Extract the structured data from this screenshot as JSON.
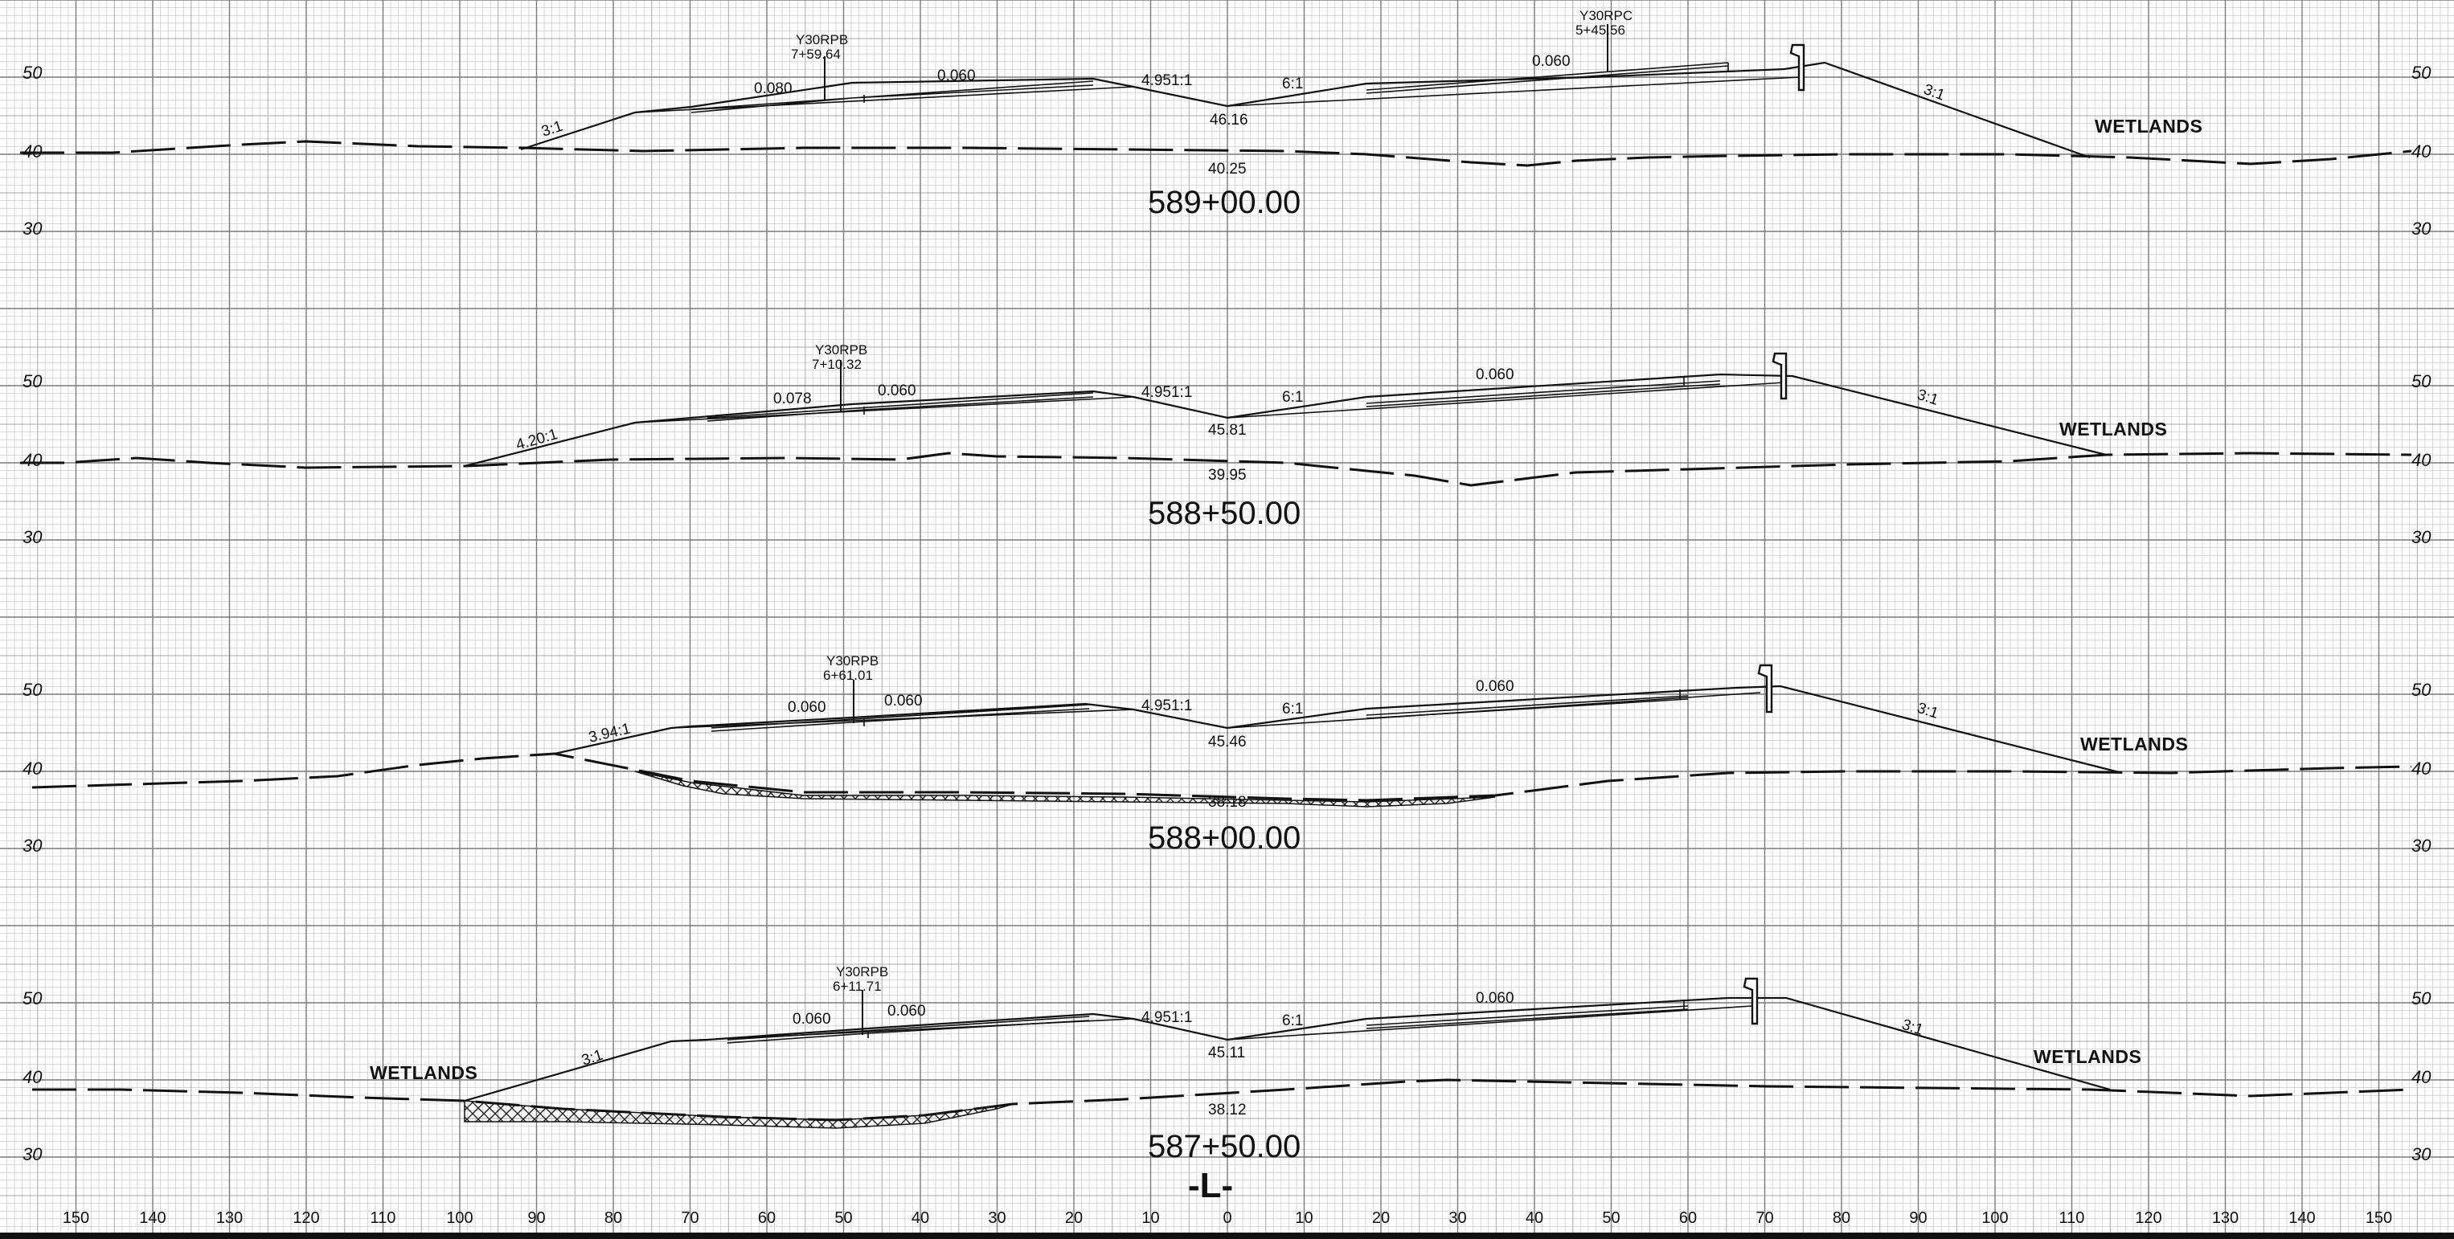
{
  "sheet": {
    "x_axis": {
      "offsets_ft": [
        150,
        140,
        130,
        120,
        110,
        100,
        90,
        80,
        70,
        60,
        50,
        40,
        30,
        20,
        10,
        0,
        10,
        20,
        30,
        40,
        50,
        60,
        70,
        80,
        90,
        100,
        110,
        120,
        130,
        140,
        150
      ]
    },
    "centerline_symbol": "-L-",
    "elevation_ticks": [
      "50",
      "40",
      "30"
    ]
  },
  "sections": [
    {
      "station": "589+00.00",
      "wetlands": [
        "WETLANDS"
      ],
      "grade_elev": "46.16",
      "ground_elev": "40.25",
      "rate_labels": [
        "3:1",
        "0.080",
        "0.060",
        "4.951:1",
        "6:1",
        "0.060",
        "3:1"
      ],
      "stations": [
        {
          "name": "Y30RPB",
          "value": "7+59.64"
        },
        {
          "name": "Y30RPC",
          "value": "5+45.56"
        }
      ]
    },
    {
      "station": "588+50.00",
      "wetlands": [
        "WETLANDS"
      ],
      "grade_elev": "45.81",
      "ground_elev": "39.95",
      "rate_labels": [
        "4.20:1",
        "0.078",
        "0.060",
        "4.951:1",
        "6:1",
        "0.060",
        "3:1"
      ],
      "stations": [
        {
          "name": "Y30RPB",
          "value": "7+10.32"
        }
      ]
    },
    {
      "station": "588+00.00",
      "wetlands": [
        "WETLANDS"
      ],
      "grade_elev": "45.46",
      "ground_elev": "38.18",
      "rate_labels": [
        "3.94:1",
        "0.060",
        "0.060",
        "4.951:1",
        "6:1",
        "0.060",
        "3:1"
      ],
      "stations": [
        {
          "name": "Y30RPB",
          "value": "6+61.01"
        }
      ]
    },
    {
      "station": "587+50.00",
      "wetlands": [
        "WETLANDS",
        "WETLANDS"
      ],
      "grade_elev": "45.11",
      "ground_elev": "38.12",
      "rate_labels": [
        "3:1",
        "0.060",
        "0.060",
        "4.951:1",
        "6:1",
        "0.060",
        "3:1"
      ],
      "stations": [
        {
          "name": "Y30RPB",
          "value": "6+11.71"
        }
      ]
    }
  ]
}
